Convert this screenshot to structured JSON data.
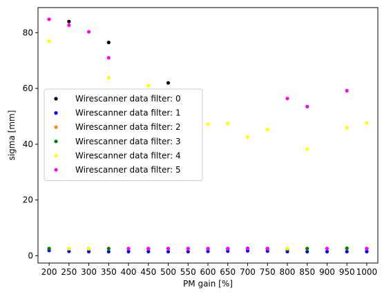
{
  "chart_data": {
    "type": "scatter",
    "xlabel": "PM gain [%]",
    "ylabel": "sigma [mm]",
    "xticks": [
      200,
      250,
      300,
      350,
      400,
      450,
      500,
      550,
      600,
      650,
      700,
      750,
      800,
      850,
      900,
      950,
      1000
    ],
    "yticks": [
      0,
      20,
      40,
      60,
      80
    ],
    "xlim": [
      172,
      1028
    ],
    "ylim": [
      -2.6,
      89
    ],
    "legend_position": "center-left",
    "grid": false,
    "series": [
      {
        "name": "Wirescanner data filter: 0",
        "color": "#000000",
        "x": [
          250,
          350,
          500
        ],
        "y": [
          84,
          76.5,
          62
        ]
      },
      {
        "name": "Wirescanner data filter: 1",
        "color": "#0000ff",
        "x": [
          200,
          250,
          300,
          350,
          400,
          450,
          500,
          550,
          600,
          650,
          700,
          750,
          800,
          850,
          900,
          950,
          1000
        ],
        "y": [
          1.9,
          1.6,
          1.5,
          1.5,
          1.5,
          1.5,
          1.5,
          1.5,
          1.6,
          1.7,
          1.8,
          1.7,
          1.5,
          1.5,
          1.5,
          1.5,
          1.5
        ]
      },
      {
        "name": "Wirescanner data filter: 2",
        "color": "#ff8c00",
        "x": [
          200,
          250,
          300,
          350,
          400,
          450,
          500,
          550,
          600,
          650,
          700,
          750,
          800,
          850,
          900,
          950,
          1000
        ],
        "y": [
          2.6,
          2.5,
          2.5,
          2.5,
          2.5,
          2.5,
          2.5,
          2.5,
          2.5,
          2.5,
          2.6,
          2.5,
          2.6,
          2.5,
          2.6,
          2.6,
          2.6
        ]
      },
      {
        "name": "Wirescanner data filter: 3",
        "color": "#008000",
        "x": [
          200,
          250,
          300,
          350,
          400,
          450,
          500,
          550,
          600,
          650,
          700,
          750,
          800,
          850,
          900,
          950,
          1000
        ],
        "y": [
          2.6,
          2.6,
          2.6,
          2.6,
          2.5,
          2.5,
          2.6,
          2.6,
          2.6,
          2.6,
          2.7,
          2.6,
          2.3,
          2.6,
          2.6,
          2.7,
          2.6
        ]
      },
      {
        "name": "Wirescanner data filter: 4",
        "color": "#ffff00",
        "x": [
          200,
          250,
          300,
          350,
          400,
          450,
          500,
          550,
          600,
          650,
          700,
          750,
          800,
          850,
          900,
          950,
          1000
        ],
        "y": [
          77,
          2.6,
          2.6,
          63.8,
          2.6,
          61,
          2.6,
          2.6,
          47.2,
          47.4,
          42.6,
          45.3,
          2.6,
          38.2,
          2.6,
          45.9,
          47.6
        ]
      },
      {
        "name": "Wirescanner data filter: 5",
        "color": "#ff00ff",
        "x": [
          200,
          250,
          300,
          350,
          400,
          450,
          500,
          550,
          600,
          650,
          700,
          750,
          800,
          850,
          900,
          950,
          1000
        ],
        "y": [
          84.8,
          82.7,
          80.3,
          71,
          2.6,
          2.6,
          2.6,
          2.6,
          2.6,
          2.6,
          2.6,
          2.6,
          56.4,
          53.5,
          2.6,
          59.2,
          2.6
        ]
      }
    ]
  }
}
